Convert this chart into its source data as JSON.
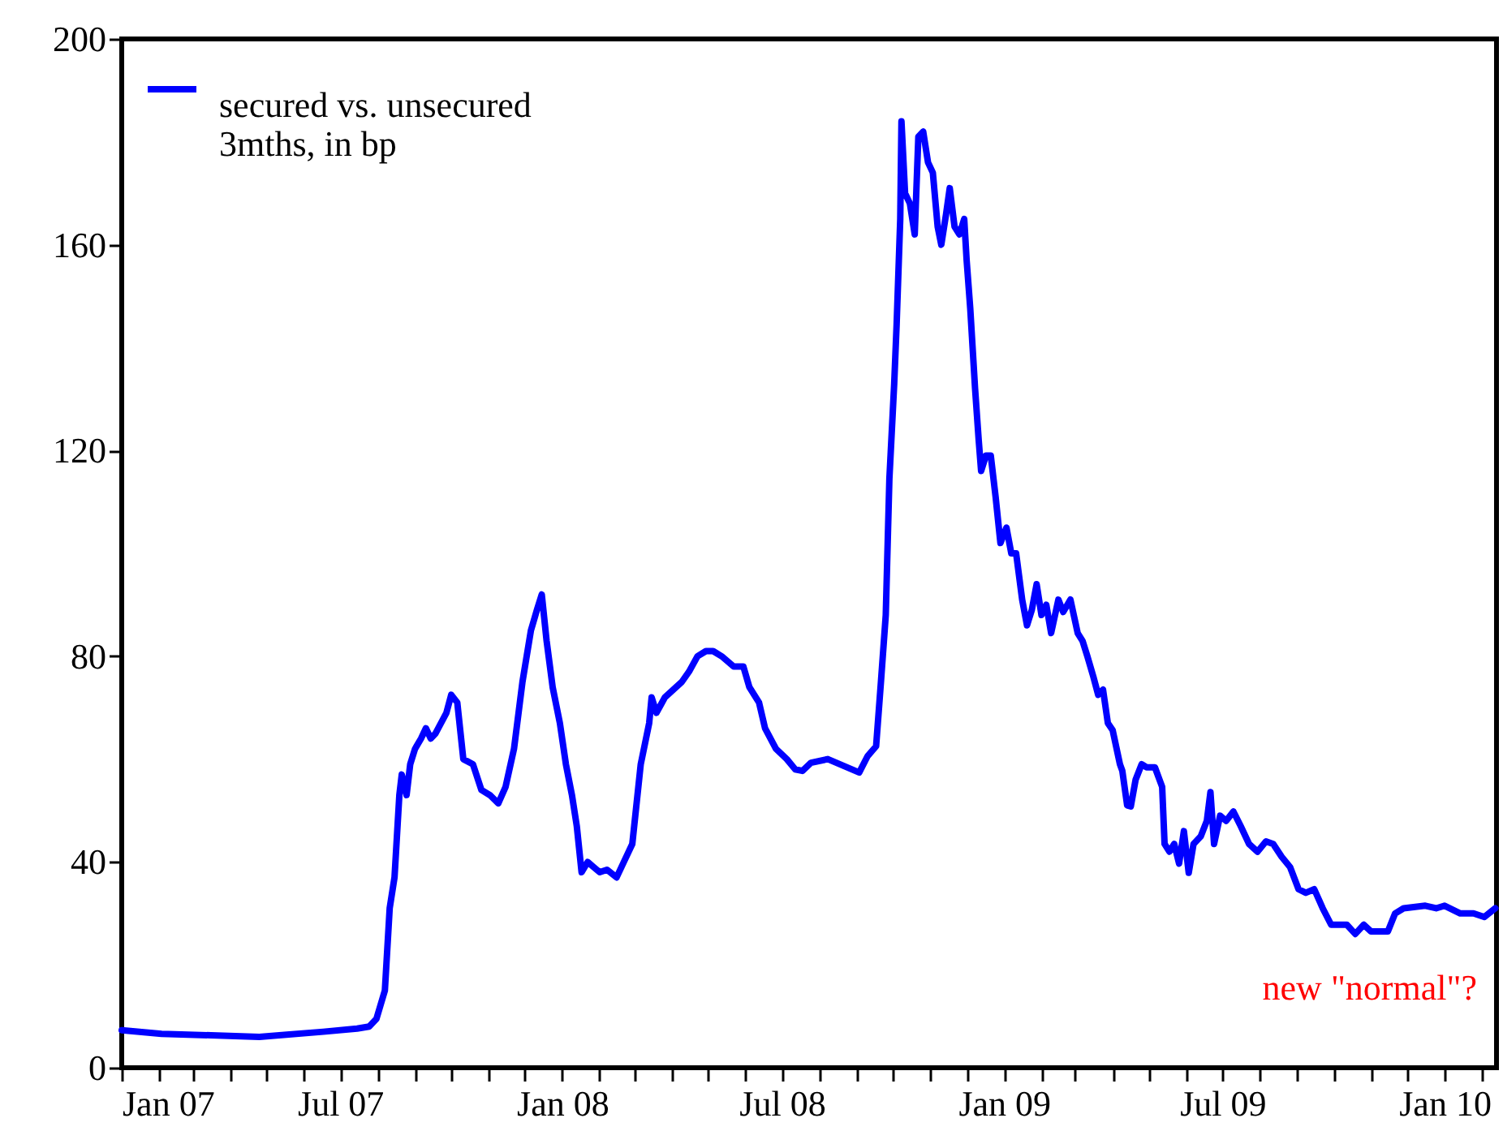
{
  "chart_data": {
    "type": "line",
    "x": [
      "2007-01-01",
      "2007-02-03",
      "2007-03-16",
      "2007-04-25",
      "2007-06-17",
      "2007-07-15",
      "2007-07-25",
      "2007-07-31",
      "2007-08-07",
      "2007-08-11",
      "2007-08-15",
      "2007-08-19",
      "2007-08-21",
      "2007-08-25",
      "2007-08-28",
      "2007-09-01",
      "2007-09-06",
      "2007-09-10",
      "2007-09-14",
      "2007-09-18",
      "2007-09-27",
      "2007-10-01",
      "2007-10-06",
      "2007-10-11",
      "2007-10-19",
      "2007-10-26",
      "2007-11-02",
      "2007-11-09",
      "2007-11-15",
      "2007-11-22",
      "2007-11-29",
      "2007-12-06",
      "2007-12-11",
      "2007-12-15",
      "2007-12-19",
      "2007-12-24",
      "2007-12-30",
      "2008-01-04",
      "2008-01-09",
      "2008-01-13",
      "2008-01-17",
      "2008-01-22",
      "2008-01-27",
      "2008-02-01",
      "2008-02-07",
      "2008-02-15",
      "2008-02-21",
      "2008-02-28",
      "2008-03-06",
      "2008-03-13",
      "2008-03-15",
      "2008-03-19",
      "2008-03-26",
      "2008-04-02",
      "2008-04-09",
      "2008-04-15",
      "2008-04-22",
      "2008-04-29",
      "2008-05-05",
      "2008-05-12",
      "2008-05-22",
      "2008-05-30",
      "2008-06-04",
      "2008-06-12",
      "2008-06-17",
      "2008-06-26",
      "2008-07-05",
      "2008-07-12",
      "2008-07-18",
      "2008-07-25",
      "2008-08-08",
      "2008-08-21",
      "2008-09-03",
      "2008-09-10",
      "2008-09-17",
      "2008-09-21",
      "2008-09-25",
      "2008-09-28",
      "2008-10-02",
      "2008-10-04",
      "2008-10-07",
      "2008-10-08",
      "2008-10-11",
      "2008-10-15",
      "2008-10-19",
      "2008-10-22",
      "2008-10-26",
      "2008-10-30",
      "2008-11-03",
      "2008-11-07",
      "2008-11-10",
      "2008-11-14",
      "2008-11-17",
      "2008-11-21",
      "2008-11-25",
      "2008-11-29",
      "2008-12-01",
      "2008-12-04",
      "2008-12-08",
      "2008-12-11",
      "2008-12-13",
      "2008-12-17",
      "2008-12-21",
      "2008-12-25",
      "2008-12-29",
      "2009-01-03",
      "2009-01-07",
      "2009-01-11",
      "2009-01-16",
      "2009-01-20",
      "2009-01-24",
      "2009-01-28",
      "2009-02-01",
      "2009-02-05",
      "2009-02-09",
      "2009-02-15",
      "2009-02-19",
      "2009-02-25",
      "2009-03-03",
      "2009-03-07",
      "2009-03-11",
      "2009-03-16",
      "2009-03-20",
      "2009-03-24",
      "2009-03-28",
      "2009-04-01",
      "2009-04-07",
      "2009-04-09",
      "2009-04-13",
      "2009-04-16",
      "2009-04-20",
      "2009-04-25",
      "2009-04-29",
      "2009-05-06",
      "2009-05-12",
      "2009-05-14",
      "2009-05-18",
      "2009-05-22",
      "2009-05-26",
      "2009-05-30",
      "2009-06-03",
      "2009-06-07",
      "2009-06-13",
      "2009-06-18",
      "2009-06-21",
      "2009-06-24",
      "2009-06-29",
      "2009-07-04",
      "2009-07-10",
      "2009-07-16",
      "2009-07-23",
      "2009-07-30",
      "2009-08-06",
      "2009-08-12",
      "2009-08-19",
      "2009-08-26",
      "2009-09-02",
      "2009-09-08",
      "2009-09-15",
      "2009-09-22",
      "2009-09-29",
      "2009-10-12",
      "2009-10-19",
      "2009-10-26",
      "2009-11-01",
      "2009-11-15",
      "2009-11-21",
      "2009-11-28",
      "2009-12-16",
      "2009-12-25",
      "2010-01-01",
      "2010-01-14",
      "2010-01-25",
      "2010-02-03",
      "2010-02-12"
    ],
    "series": [
      {
        "name": "secured vs. unsecured\n3mths, in bp",
        "color": "#0000ff",
        "values": [
          7.3,
          6.6,
          6.3,
          6,
          7,
          7.6,
          8,
          9.5,
          15,
          31,
          37,
          53,
          57,
          53,
          59,
          62,
          64,
          66,
          64,
          65,
          69,
          72.5,
          71,
          60,
          59,
          54,
          53,
          51.4,
          54.6,
          62,
          75,
          85,
          89,
          92,
          83,
          74,
          67,
          59,
          53,
          47,
          38,
          40,
          39,
          38,
          38.5,
          37,
          40,
          43.5,
          59,
          67,
          72,
          69,
          72,
          73.5,
          75,
          77,
          80,
          81,
          81,
          80,
          78,
          78,
          74,
          71,
          66,
          62,
          60,
          58,
          57.7,
          59.3,
          60,
          58.7,
          57.4,
          60.6,
          62.5,
          75,
          88,
          114.5,
          133,
          144.5,
          165,
          184,
          170,
          168,
          162,
          181,
          182,
          176,
          174,
          163.5,
          160,
          166,
          171,
          163.5,
          162,
          165,
          157,
          147.6,
          132,
          122,
          116,
          119,
          119,
          111,
          102,
          105,
          100,
          100,
          91,
          86,
          89,
          94,
          88,
          90,
          84.5,
          91,
          88.6,
          91,
          84.5,
          83,
          80,
          76,
          72.5,
          73.5,
          67,
          65.6,
          59,
          57.7,
          51,
          50.8,
          56,
          59,
          58.4,
          58.4,
          54.6,
          43.5,
          42,
          43.5,
          39.7,
          46,
          37.9,
          43.5,
          45,
          48,
          53.6,
          43.5,
          49,
          48,
          49.8,
          47,
          43.5,
          42,
          44,
          43.5,
          41,
          39,
          34.7,
          34,
          34.7,
          31,
          27.8,
          27.8,
          26,
          27.8,
          26.5,
          26.5,
          30,
          31,
          31.5,
          31,
          31.5,
          30,
          30,
          29.3,
          31
        ]
      }
    ],
    "xlim": [
      "2007-01-01",
      "2010-02-13"
    ],
    "xticks": [
      {
        "value": "2007-01-01",
        "label": "Jan 07"
      },
      {
        "value": "2007-02-01",
        "label": null
      },
      {
        "value": "2007-03-01",
        "label": null
      },
      {
        "value": "2007-04-01",
        "label": null
      },
      {
        "value": "2007-05-01",
        "label": null
      },
      {
        "value": "2007-06-01",
        "label": null
      },
      {
        "value": "2007-07-01",
        "label": "Jul 07"
      },
      {
        "value": "2007-08-01",
        "label": null
      },
      {
        "value": "2007-09-01",
        "label": null
      },
      {
        "value": "2007-10-01",
        "label": null
      },
      {
        "value": "2007-11-01",
        "label": null
      },
      {
        "value": "2007-12-01",
        "label": null
      },
      {
        "value": "2008-01-01",
        "label": "Jan 08"
      },
      {
        "value": "2008-02-01",
        "label": null
      },
      {
        "value": "2008-03-01",
        "label": null
      },
      {
        "value": "2008-04-01",
        "label": null
      },
      {
        "value": "2008-05-01",
        "label": null
      },
      {
        "value": "2008-06-01",
        "label": null
      },
      {
        "value": "2008-07-01",
        "label": "Jul 08"
      },
      {
        "value": "2008-08-01",
        "label": null
      },
      {
        "value": "2008-09-01",
        "label": null
      },
      {
        "value": "2008-10-01",
        "label": null
      },
      {
        "value": "2008-11-01",
        "label": null
      },
      {
        "value": "2008-12-01",
        "label": null
      },
      {
        "value": "2009-01-01",
        "label": "Jan 09"
      },
      {
        "value": "2009-02-01",
        "label": null
      },
      {
        "value": "2009-03-01",
        "label": null
      },
      {
        "value": "2009-04-01",
        "label": null
      },
      {
        "value": "2009-05-01",
        "label": null
      },
      {
        "value": "2009-06-01",
        "label": null
      },
      {
        "value": "2009-07-01",
        "label": "Jul 09"
      },
      {
        "value": "2009-08-01",
        "label": null
      },
      {
        "value": "2009-09-01",
        "label": null
      },
      {
        "value": "2009-10-01",
        "label": null
      },
      {
        "value": "2009-11-01",
        "label": null
      },
      {
        "value": "2009-12-01",
        "label": null
      },
      {
        "value": "2010-01-01",
        "label": "Jan 10"
      },
      {
        "value": "2010-02-01",
        "label": null
      }
    ],
    "ylim": [
      0,
      200
    ],
    "yticks": [
      0,
      40,
      80,
      120,
      160,
      200
    ],
    "grid": false,
    "legend": "top left",
    "marker": "none",
    "line_style": "solid",
    "annotations": [
      "new \"normal\"?"
    ]
  }
}
